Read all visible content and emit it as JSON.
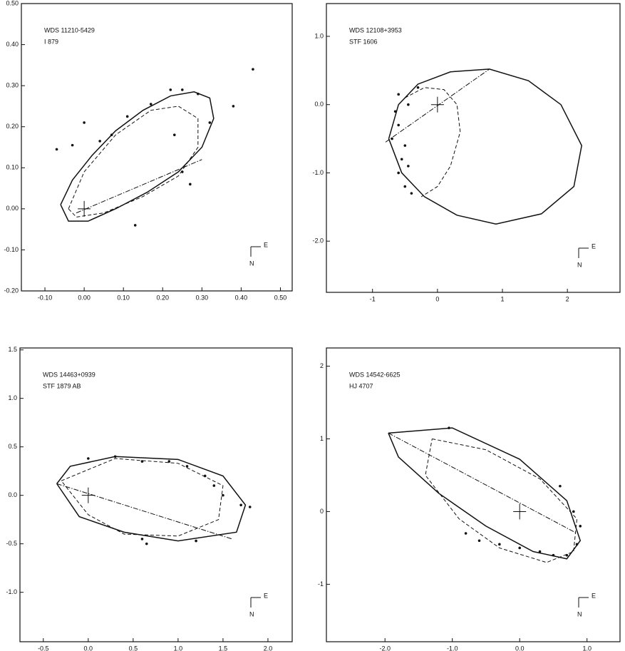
{
  "chart_data": [
    {
      "type": "orbit",
      "labels": [
        "WDS 11210-5429",
        "I  879"
      ],
      "compass": [
        "E",
        "N"
      ],
      "xlim": [
        -0.16,
        0.53
      ],
      "ylim": [
        -0.2,
        0.5
      ],
      "xticks": [
        {
          "value": -0.1,
          "label": "-0.10"
        },
        {
          "value": 0,
          "label": "0.00"
        },
        {
          "value": 0.1,
          "label": "0.10"
        },
        {
          "value": 0.2,
          "label": "0.20"
        },
        {
          "value": 0.3,
          "label": "0.30"
        },
        {
          "value": 0.4,
          "label": "0.40"
        },
        {
          "value": 0.5,
          "label": "0.50"
        }
      ],
      "yticks": [
        {
          "value": -0.2,
          "label": "-0.20"
        },
        {
          "value": -0.1,
          "label": "-0.10"
        },
        {
          "value": 0,
          "label": "0.00"
        },
        {
          "value": 0.1,
          "label": "0.10"
        },
        {
          "value": 0.2,
          "label": "0.20"
        },
        {
          "value": 0.3,
          "label": "0.30"
        },
        {
          "value": 0.4,
          "label": "0.40"
        },
        {
          "value": 0.5,
          "label": "0.50"
        }
      ],
      "series": [
        {
          "style": "solid",
          "x": [
            -0.06,
            -0.03,
            0.02,
            0.08,
            0.15,
            0.22,
            0.28,
            0.32,
            0.33,
            0.3,
            0.24,
            0.16,
            0.08,
            0.01,
            -0.04,
            -0.06
          ],
          "y": [
            0.01,
            0.07,
            0.13,
            0.19,
            0.24,
            0.275,
            0.285,
            0.27,
            0.22,
            0.15,
            0.09,
            0.04,
            0.0,
            -0.03,
            -0.03,
            0.01
          ]
        },
        {
          "style": "dashed",
          "x": [
            -0.04,
            0.0,
            0.08,
            0.17,
            0.24,
            0.29,
            0.29,
            0.24,
            0.15,
            0.05,
            -0.02,
            -0.04
          ],
          "y": [
            0.0,
            0.09,
            0.18,
            0.24,
            0.25,
            0.22,
            0.15,
            0.08,
            0.03,
            -0.01,
            -0.02,
            0.0
          ]
        },
        {
          "style": "dashdot",
          "x": [
            -0.02,
            0.3
          ],
          "y": [
            -0.01,
            0.12
          ]
        }
      ],
      "points": {
        "x": [
          -0.07,
          -0.03,
          0.0,
          0.04,
          0.07,
          0.11,
          0.17,
          0.22,
          0.25,
          0.29,
          0.23,
          0.32,
          0.25,
          0.27,
          0.13,
          0.43,
          0.38
        ],
        "y": [
          0.145,
          0.155,
          0.21,
          0.165,
          0.18,
          0.225,
          0.255,
          0.29,
          0.29,
          0.28,
          0.18,
          0.21,
          0.09,
          0.06,
          -0.04,
          0.34,
          0.25
        ]
      }
    },
    {
      "type": "orbit",
      "labels": [
        "WDS 12108+3953",
        "STF 1606"
      ],
      "compass": [
        "E",
        "N"
      ],
      "xlim": [
        -1.71,
        2.81
      ],
      "ylim": [
        -2.75,
        1.48
      ],
      "xticks": [
        -1,
        0,
        1,
        2
      ],
      "yticks": [
        {
          "value": -2,
          "label": "-2.0"
        },
        {
          "value": -1,
          "label": "-1.0"
        },
        {
          "value": 0,
          "label": "0.0"
        },
        {
          "value": 1,
          "label": "1.0"
        }
      ],
      "series": [
        {
          "style": "solid",
          "x": [
            -0.75,
            -0.6,
            -0.3,
            0.2,
            0.8,
            1.4,
            1.9,
            2.22,
            2.1,
            1.6,
            0.9,
            0.3,
            -0.2,
            -0.55,
            -0.75
          ],
          "y": [
            -0.5,
            0.0,
            0.3,
            0.48,
            0.52,
            0.35,
            0.0,
            -0.6,
            -1.2,
            -1.6,
            -1.75,
            -1.62,
            -1.35,
            -1.0,
            -0.5
          ]
        },
        {
          "style": "dashed",
          "x": [
            -0.5,
            -0.2,
            0.1,
            0.3,
            0.35,
            0.2,
            0.0,
            -0.25
          ],
          "y": [
            0.1,
            0.25,
            0.22,
            0.0,
            -0.4,
            -0.9,
            -1.2,
            -1.35
          ]
        },
        {
          "style": "dashdot",
          "x": [
            -0.8,
            0.8
          ],
          "y": [
            -0.55,
            0.52
          ]
        }
      ],
      "points": {
        "x": [
          -0.6,
          -0.65,
          -0.6,
          -0.7,
          -0.55,
          -0.6,
          -0.5,
          -0.4,
          -0.3,
          -0.45,
          -0.5,
          -0.45
        ],
        "y": [
          0.15,
          -0.1,
          -0.3,
          -0.5,
          -0.8,
          -1.0,
          -1.2,
          -1.3,
          0.25,
          0.0,
          -0.6,
          -0.9
        ]
      }
    },
    {
      "type": "orbit",
      "labels": [
        "WDS 14463+0939",
        "STF 1879 AB"
      ],
      "compass": [
        "E",
        "N"
      ],
      "xlim": [
        -0.76,
        2.27
      ],
      "ylim": [
        -1.51,
        1.52
      ],
      "xticks": [
        -0.5,
        {
          "value": 0,
          "label": "0.0"
        },
        0.5,
        {
          "value": 1,
          "label": "1.0"
        },
        1.5,
        {
          "value": 2,
          "label": "2.0"
        }
      ],
      "yticks": [
        {
          "value": -1,
          "label": "-1.0"
        },
        -0.5,
        {
          "value": 0,
          "label": "0.0"
        },
        0.5,
        {
          "value": 1,
          "label": "1.0"
        },
        1.5
      ],
      "series": [
        {
          "style": "solid",
          "x": [
            -0.35,
            -0.2,
            0.3,
            1.0,
            1.5,
            1.75,
            1.65,
            1.0,
            0.4,
            -0.1,
            -0.35
          ],
          "y": [
            0.12,
            0.3,
            0.4,
            0.37,
            0.2,
            -0.1,
            -0.38,
            -0.47,
            -0.38,
            -0.22,
            0.12
          ]
        },
        {
          "style": "dashed",
          "x": [
            -0.3,
            0.3,
            1.0,
            1.5,
            1.45,
            1.0,
            0.4,
            0.0,
            -0.3
          ],
          "y": [
            0.15,
            0.38,
            0.33,
            0.1,
            -0.25,
            -0.42,
            -0.4,
            -0.2,
            0.15
          ]
        },
        {
          "style": "dashdot",
          "x": [
            -0.35,
            1.6
          ],
          "y": [
            0.12,
            -0.45
          ]
        }
      ],
      "points": {
        "x": [
          0.0,
          0.3,
          0.6,
          0.9,
          1.1,
          1.3,
          1.4,
          1.5,
          1.7,
          1.8,
          0.65,
          0.6,
          1.2
        ],
        "y": [
          0.38,
          0.4,
          0.35,
          0.35,
          0.3,
          0.2,
          0.1,
          0.0,
          -0.1,
          -0.12,
          -0.5,
          -0.45,
          -0.47
        ]
      }
    },
    {
      "type": "orbit",
      "labels": [
        "WDS 14542-6625",
        "HJ 4707"
      ],
      "compass": [
        "E",
        "N"
      ],
      "xlim": [
        -2.87,
        1.49
      ],
      "ylim": [
        -1.79,
        2.25
      ],
      "xticks": [
        {
          "value": -2,
          "label": "-2.0"
        },
        {
          "value": -1,
          "label": "-1.0"
        },
        {
          "value": 0,
          "label": "0.0"
        },
        {
          "value": 1,
          "label": "1.0"
        }
      ],
      "yticks": [
        -1,
        0,
        1,
        2
      ],
      "series": [
        {
          "style": "solid",
          "x": [
            -1.95,
            -1.0,
            0.0,
            0.7,
            0.9,
            0.7,
            0.2,
            -0.5,
            -1.2,
            -1.8,
            -1.95
          ],
          "y": [
            1.08,
            1.15,
            0.72,
            0.15,
            -0.4,
            -0.65,
            -0.55,
            -0.2,
            0.25,
            0.75,
            1.08
          ]
        },
        {
          "style": "dashed",
          "x": [
            -1.3,
            -0.5,
            0.3,
            0.85,
            0.8,
            0.4,
            -0.3,
            -0.9,
            -1.4,
            -1.3
          ],
          "y": [
            1.0,
            0.85,
            0.45,
            -0.1,
            -0.55,
            -0.7,
            -0.5,
            -0.1,
            0.5,
            1.0
          ]
        },
        {
          "style": "dashdot",
          "x": [
            -1.95,
            0.85
          ],
          "y": [
            1.08,
            -0.3
          ]
        }
      ],
      "points": {
        "x": [
          -1.05,
          -0.8,
          -0.6,
          -0.3,
          0.0,
          0.3,
          0.5,
          0.7,
          0.85,
          0.9,
          0.6,
          0.8
        ],
        "y": [
          1.15,
          -0.3,
          -0.4,
          -0.45,
          -0.5,
          -0.55,
          -0.6,
          -0.6,
          -0.45,
          -0.2,
          0.35,
          0.0
        ]
      }
    }
  ]
}
